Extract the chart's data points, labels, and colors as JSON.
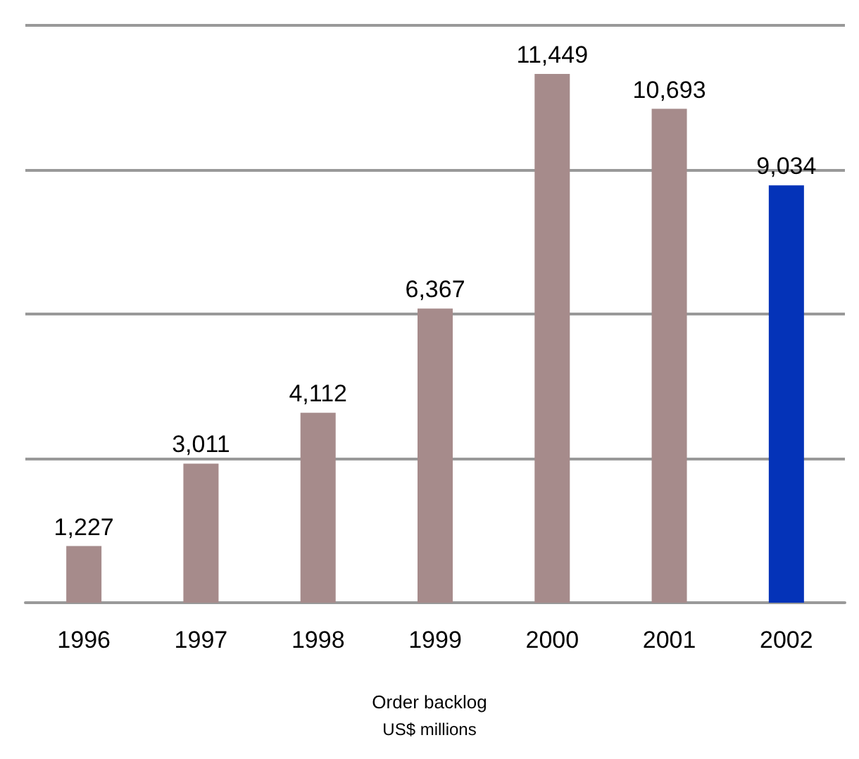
{
  "chart_data": {
    "type": "bar",
    "title": "Order backlog",
    "subtitle": "US$ millions",
    "categories": [
      "1996",
      "1997",
      "1998",
      "1999",
      "2000",
      "2001",
      "2002"
    ],
    "values": [
      1227,
      3011,
      4112,
      6367,
      11449,
      10693,
      9034
    ],
    "colors": [
      "#a68b8b",
      "#a68b8b",
      "#a68b8b",
      "#a68b8b",
      "#a68b8b",
      "#a68b8b",
      "#0433b8"
    ],
    "value_labels": [
      "1,227",
      "3,011",
      "4,112",
      "6,367",
      "11,449",
      "10,693",
      "9,034"
    ],
    "ylim": [
      0,
      12500
    ],
    "yticks": [
      {
        "value": 0,
        "label": null
      },
      {
        "value": 3125,
        "label": null
      },
      {
        "value": 6250,
        "label": null
      },
      {
        "value": 9375,
        "label": null
      },
      {
        "value": 12500,
        "label": null
      }
    ],
    "grid": "y",
    "tick_labels": "x"
  }
}
